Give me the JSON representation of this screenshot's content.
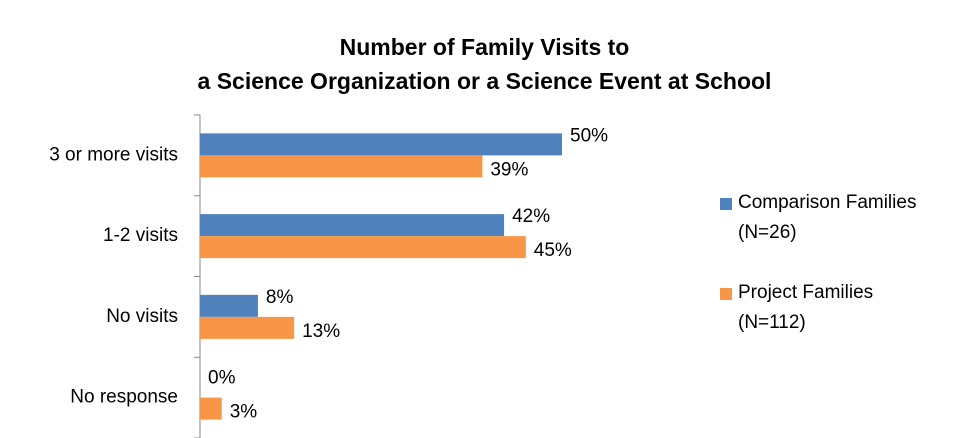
{
  "chart_data": {
    "type": "bar",
    "orientation": "horizontal",
    "title": "Number of Family Visits to\na Science Organization or a Science Event at School",
    "categories": [
      "3 or more visits",
      "1-2 visits",
      "No visits",
      "No response"
    ],
    "series": [
      {
        "name": "Comparison Families (N=26)",
        "color": "#4f81bd",
        "values": [
          50,
          42,
          8,
          0
        ],
        "value_labels": [
          "50%",
          "42%",
          "8%",
          "0%"
        ]
      },
      {
        "name": "Project Families (N=112)",
        "color": "#f79646",
        "values": [
          39,
          45,
          13,
          3
        ],
        "value_labels": [
          "39%",
          "45%",
          "13%",
          "3%"
        ]
      }
    ],
    "legend": "right"
  }
}
